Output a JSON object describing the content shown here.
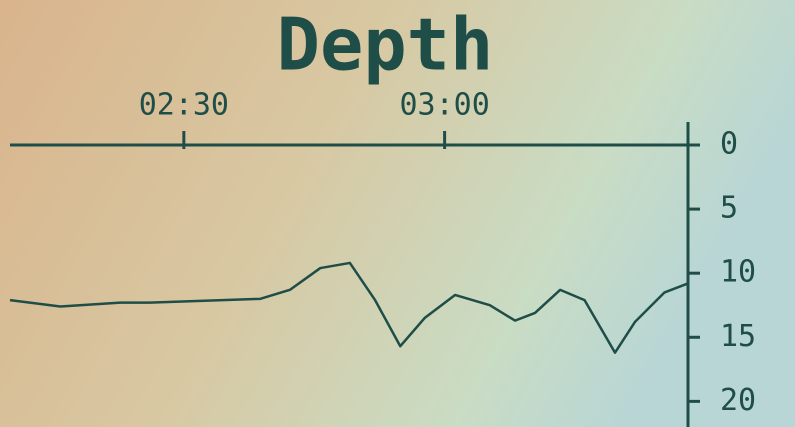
{
  "chart_data": {
    "type": "line",
    "title": "Depth",
    "x": [
      130,
      135.8,
      142.7,
      146.1,
      158.8,
      162.2,
      165.7,
      169.1,
      172,
      174.9,
      177.7,
      181.2,
      185.2,
      188.1,
      190.4,
      193.3,
      196.1,
      199.6,
      201.9,
      205.3,
      208
    ],
    "series": [
      {
        "name": "Depth",
        "color": "#1f4d47",
        "values": [
          12.1,
          12.6,
          12.3,
          12.3,
          12.0,
          11.3,
          9.6,
          9.2,
          12.1,
          15.7,
          13.5,
          11.7,
          12.5,
          13.7,
          13.1,
          11.3,
          12.1,
          16.2,
          13.8,
          11.5,
          10.8
        ]
      }
    ],
    "xlim": [
      130,
      208
    ],
    "xticks": [
      {
        "value": 150,
        "label": "02:30"
      },
      {
        "value": 180,
        "label": "03:00"
      }
    ],
    "ylim": [
      0,
      22
    ],
    "yticks": [
      0,
      5,
      10,
      15,
      20
    ],
    "y_inverted": true,
    "axis_color": "#1f4d47"
  }
}
